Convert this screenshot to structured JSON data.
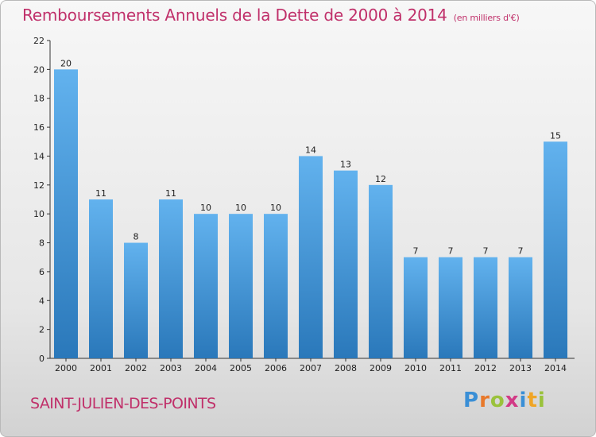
{
  "header": {
    "title": "Remboursements Annuels de la Dette de 2000 à 2014",
    "subtitle": "(en milliers d'€)"
  },
  "footer": {
    "place": "SAINT-JULIEN-DES-POINTS",
    "logo_letters": [
      "P",
      "r",
      "o",
      "x",
      "i",
      "t",
      "i"
    ],
    "logo_colors": [
      "#3a8fd6",
      "#e8792b",
      "#9ac23c",
      "#d23a86",
      "#3a8fd6",
      "#f0a526",
      "#9ac23c"
    ]
  },
  "chart_data": {
    "type": "bar",
    "title": "Remboursements Annuels de la Dette de 2000 à 2014",
    "subtitle": "(en milliers d'€)",
    "categories": [
      "2000",
      "2001",
      "2002",
      "2003",
      "2004",
      "2005",
      "2006",
      "2007",
      "2008",
      "2009",
      "2010",
      "2011",
      "2012",
      "2013",
      "2014"
    ],
    "values": [
      20,
      11,
      8,
      11,
      10,
      10,
      10,
      14,
      13,
      12,
      7,
      7,
      7,
      7,
      15
    ],
    "ylim": [
      0,
      22
    ],
    "yticks": [
      0,
      2,
      4,
      6,
      8,
      10,
      12,
      14,
      16,
      18,
      20,
      22
    ],
    "grid": false,
    "colors": {
      "bar_light": "#62b2ee",
      "bar_dark": "#2a78ba",
      "axis": "#333333"
    }
  }
}
